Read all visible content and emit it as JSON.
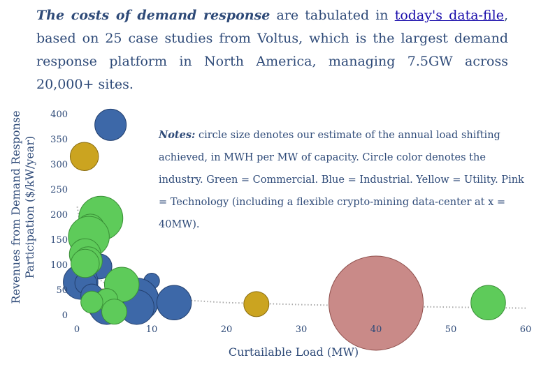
{
  "intro": {
    "lead": "The costs of demand response",
    "text_a": " are tabulated in ",
    "link": "today's data-file",
    "text_b": ", based on 25 case studies from Voltus, which is the largest demand response platform in North America, managing 7.5GW across 20,000+ sites."
  },
  "notes": {
    "label": "Notes:",
    "text": " circle size denotes our estimate of the annual load shifting achieved, in MWH per MW of capacity. Circle color denotes the industry. Green = Commercial. Blue = Industrial. Yellow = Utility. Pink = Technology (including a flexible crypto-mining data-center at x = 40MW)."
  },
  "colors": {
    "Commercial": "#5ecb5a",
    "Industrial": "#3d68a8",
    "Utility": "#cba420",
    "Technology": "#c98a88"
  },
  "chart_data": {
    "type": "scatter",
    "title": "",
    "xlabel": "Curtailable Load (MW)",
    "ylabel": "Revenues from Demand Response Participation ($/kW/year)",
    "xlim": [
      0,
      60
    ],
    "ylim": [
      0,
      400
    ],
    "xticks": [
      0,
      10,
      20,
      30,
      40,
      50,
      60
    ],
    "yticks": [
      0,
      50,
      100,
      150,
      200,
      250,
      300,
      350,
      400
    ],
    "trendline": {
      "style": "dotted",
      "points": [
        [
          0.05,
          215
        ],
        [
          0.5,
          175
        ],
        [
          1,
          140
        ],
        [
          2,
          95
        ],
        [
          3,
          70
        ],
        [
          5,
          50
        ],
        [
          8,
          38
        ],
        [
          12,
          31
        ],
        [
          20,
          24
        ],
        [
          30,
          20
        ],
        [
          40,
          17
        ],
        [
          50,
          15
        ],
        [
          60,
          13
        ]
      ]
    },
    "series": [
      {
        "name": "Technology",
        "points": [
          {
            "x": 40,
            "y": 23,
            "size": 30
          },
          {
            "x": 3.5,
            "y": 20,
            "size": 10
          }
        ]
      },
      {
        "name": "Industrial",
        "points": [
          {
            "x": 4.5,
            "y": 378,
            "size": 10
          },
          {
            "x": 3,
            "y": 96,
            "size": 8
          },
          {
            "x": 0.5,
            "y": 65,
            "size": 11
          },
          {
            "x": 1.2,
            "y": 63,
            "size": 7
          },
          {
            "x": 2,
            "y": 39,
            "size": 7
          },
          {
            "x": 10,
            "y": 67,
            "size": 5
          },
          {
            "x": 8,
            "y": 29,
            "size": 14
          },
          {
            "x": 8,
            "y": 15,
            "size": 11
          },
          {
            "x": 13,
            "y": 24,
            "size": 11
          },
          {
            "x": 4,
            "y": 15,
            "size": 11
          }
        ]
      },
      {
        "name": "Utility",
        "points": [
          {
            "x": 1,
            "y": 315,
            "size": 9
          },
          {
            "x": 24,
            "y": 21,
            "size": 8
          }
        ]
      },
      {
        "name": "Commercial",
        "points": [
          {
            "x": 3.2,
            "y": 192,
            "size": 14
          },
          {
            "x": 1.8,
            "y": 172,
            "size": 9
          },
          {
            "x": 1.6,
            "y": 155,
            "size": 13
          },
          {
            "x": 1.1,
            "y": 120,
            "size": 10
          },
          {
            "x": 1.5,
            "y": 107,
            "size": 9
          },
          {
            "x": 1.1,
            "y": 102,
            "size": 9
          },
          {
            "x": 6,
            "y": 60,
            "size": 11
          },
          {
            "x": 4,
            "y": 30,
            "size": 7
          },
          {
            "x": 2,
            "y": 25,
            "size": 7
          },
          {
            "x": 5,
            "y": 6,
            "size": 8
          },
          {
            "x": 55,
            "y": 24,
            "size": 11
          }
        ]
      }
    ]
  }
}
